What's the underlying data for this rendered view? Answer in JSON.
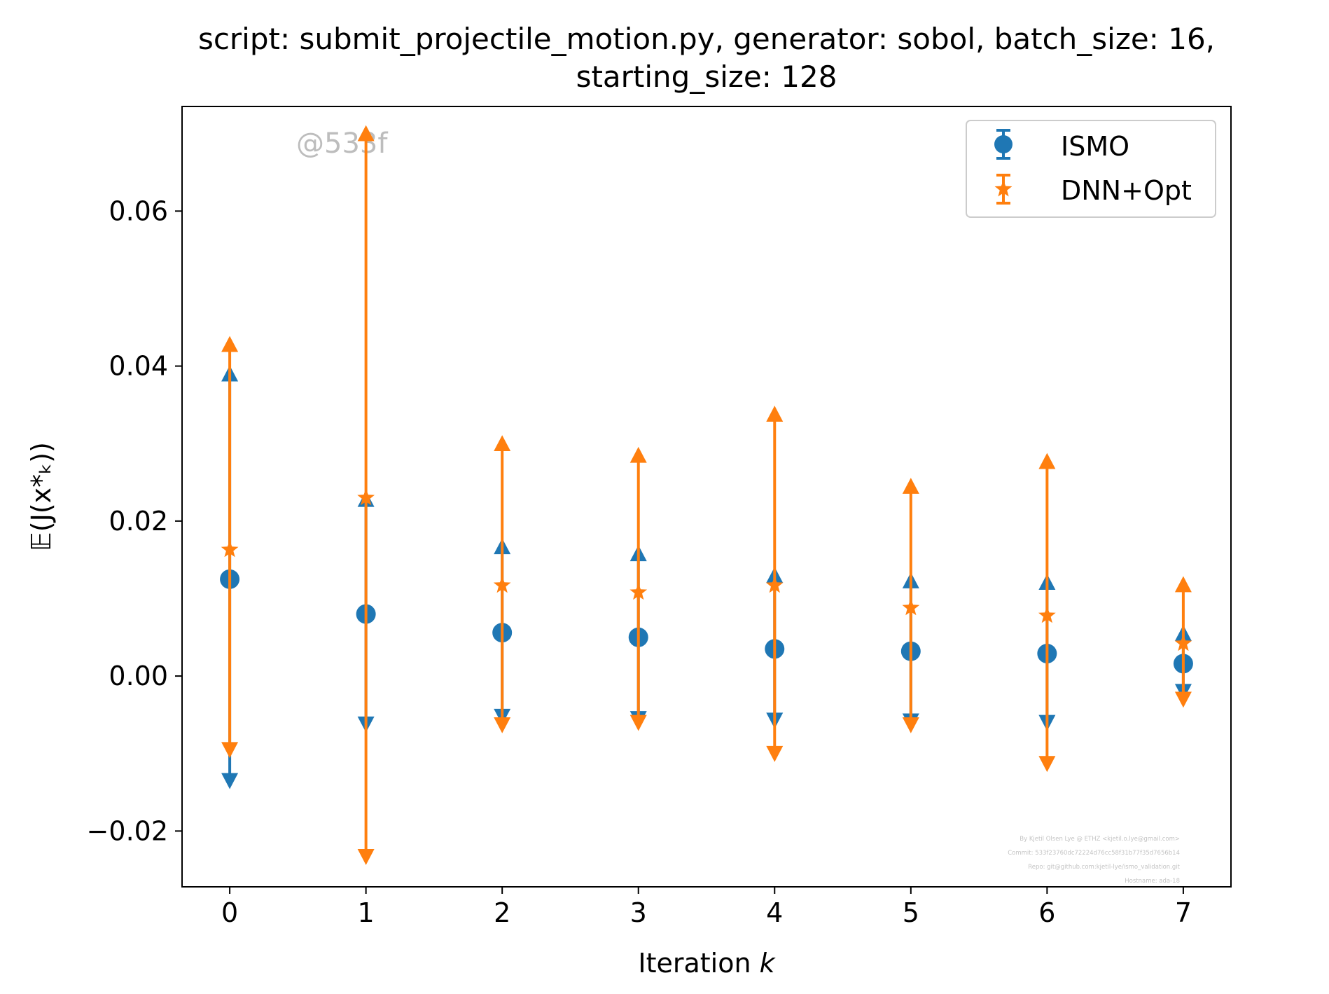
{
  "chart_data": {
    "type": "scatter",
    "title_line1": "script: submit_projectile_motion.py, generator: sobol, batch_size: 16,",
    "title_line2": "starting_size: 128",
    "xlabel_prefix": "Iteration ",
    "xlabel_var": "k",
    "ylabel": "𝔼(J(x*ₖ))",
    "x_ticks": [
      0,
      1,
      2,
      3,
      4,
      5,
      6,
      7
    ],
    "y_ticks": [
      -0.02,
      0.0,
      0.02,
      0.04,
      0.06
    ],
    "y_tick_labels": [
      "−0.02",
      "0.00",
      "0.02",
      "0.04",
      "0.06"
    ],
    "xlim": [
      -0.35,
      7.35
    ],
    "ylim": [
      -0.0272,
      0.0735
    ],
    "legend_position": "top-right",
    "grid": false,
    "watermark": "@533f",
    "credits": [
      "By Kjetil Olsen Lye @ ETHZ <kjetil.o.lye@gmail.com>",
      "Commit: 533f23760dc72224d76cc58f31b77f35d7656b14",
      "Repo: git@github.com:kjetil-lye/ismo_validation.git",
      "Hostname: ada-18"
    ],
    "series": [
      {
        "name": "ISMO",
        "color": "#1f77b4",
        "marker": "circle",
        "x": [
          0,
          1,
          2,
          3,
          4,
          5,
          6,
          7
        ],
        "y": [
          0.0125,
          0.008,
          0.0056,
          0.005,
          0.0035,
          0.0032,
          0.0029,
          0.0016
        ],
        "upper": [
          0.039,
          0.0228,
          0.0167,
          0.0158,
          0.013,
          0.0123,
          0.0121,
          0.0055
        ],
        "lower": [
          -0.0135,
          -0.0062,
          -0.0052,
          -0.0055,
          -0.0057,
          -0.0058,
          -0.006,
          -0.002
        ]
      },
      {
        "name": "DNN+Opt",
        "color": "#ff7f0e",
        "marker": "star",
        "x": [
          0,
          1,
          2,
          3,
          4,
          5,
          6,
          7
        ],
        "y": [
          0.0163,
          0.023,
          0.0117,
          0.0108,
          0.0117,
          0.0088,
          0.0078,
          0.0042
        ],
        "upper": [
          0.0428,
          0.07,
          0.03,
          0.0285,
          0.0338,
          0.0245,
          0.0277,
          0.0118
        ],
        "lower": [
          -0.0095,
          -0.0233,
          -0.0063,
          -0.006,
          -0.01,
          -0.0063,
          -0.0113,
          -0.003
        ]
      }
    ]
  }
}
